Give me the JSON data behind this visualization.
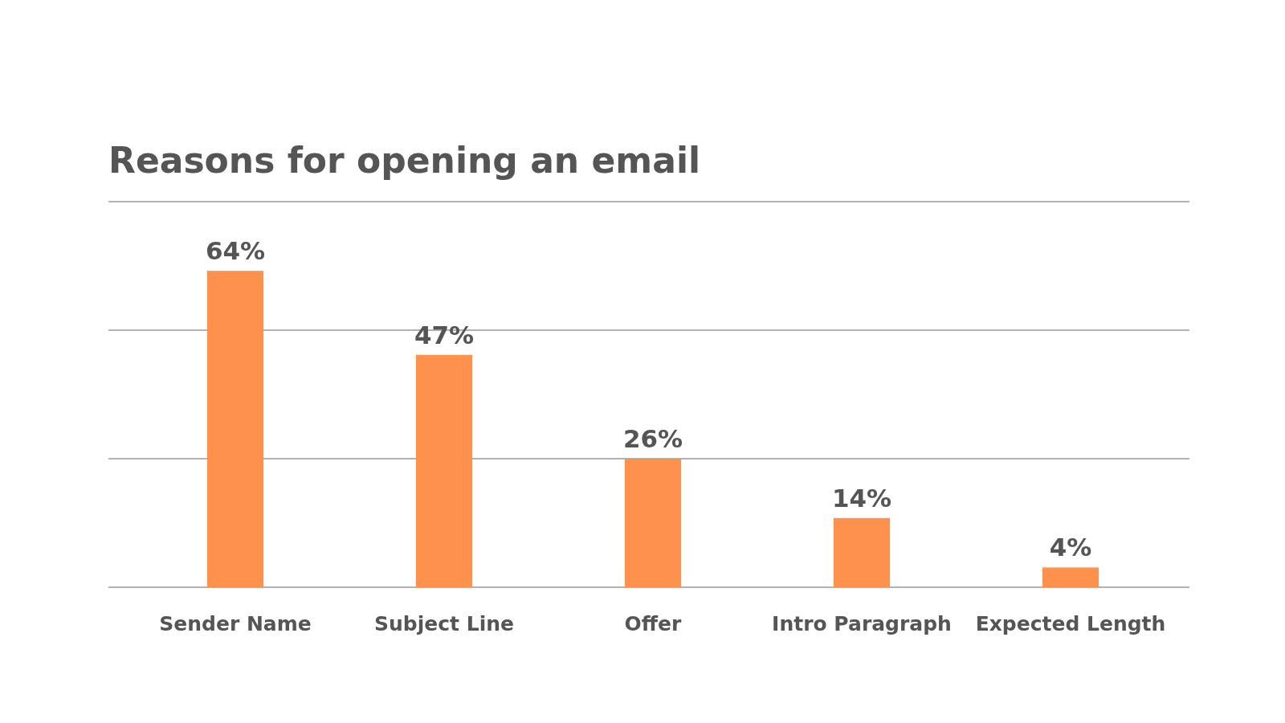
{
  "chart_data": {
    "type": "bar",
    "title": "Reasons for opening an email",
    "categories": [
      "Sender Name",
      "Subject Line",
      "Offer",
      "Intro Paragraph",
      "Expected Length"
    ],
    "values": [
      64,
      47,
      26,
      14,
      4
    ],
    "value_labels": [
      "64%",
      "47%",
      "26%",
      "14%",
      "4%"
    ],
    "color": "#fe914c",
    "grid": "y",
    "tick_labels": "x",
    "ylim": [
      0,
      78
    ],
    "yticks": [
      {
        "value": 0,
        "label": null
      },
      {
        "value": 26,
        "label": null
      },
      {
        "value": 52,
        "label": null
      },
      {
        "value": 78,
        "label": null
      }
    ]
  }
}
